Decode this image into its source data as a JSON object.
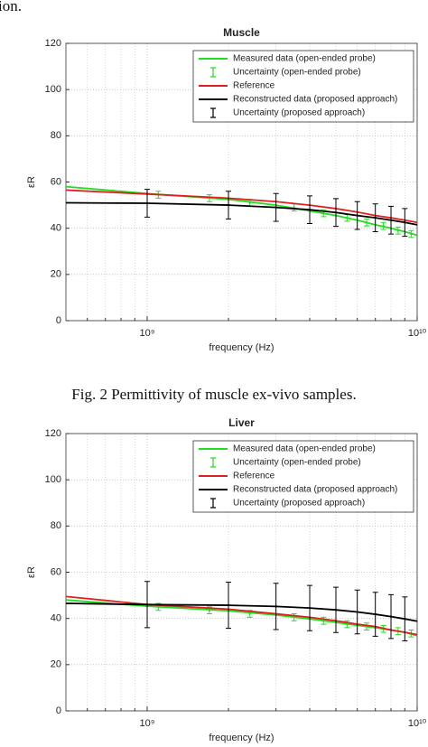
{
  "header_fragment": "ion.",
  "caption": "Fig. 2 Permittivity of muscle ex-vivo samples.",
  "chart_data": [
    {
      "type": "line",
      "title": "Muscle",
      "xlabel": "frequency (Hz)",
      "ylabel": "εR",
      "xscale": "log",
      "xlim": [
        500000000,
        10000000000
      ],
      "xticks": [
        {
          "value": 1000000000,
          "label": "10⁹"
        },
        {
          "value": 10000000000,
          "label": "10¹⁰"
        }
      ],
      "xminorticks": [
        600000000,
        700000000,
        800000000,
        900000000,
        2000000000,
        3000000000,
        4000000000,
        5000000000,
        6000000000,
        7000000000,
        8000000000,
        9000000000
      ],
      "ylim": [
        0,
        120
      ],
      "yticks": [
        0,
        20,
        40,
        60,
        80,
        100,
        120
      ],
      "grid": true,
      "legend": "northeast",
      "series": [
        {
          "name": "Measured data (open-ended probe)",
          "kind": "line",
          "color": "#22dd22",
          "x": [
            500000000,
            1000000000,
            2000000000,
            3000000000,
            4000000000,
            5000000000,
            6000000000,
            7000000000,
            8000000000,
            9000000000,
            10000000000
          ],
          "values": [
            58,
            55,
            52.5,
            50,
            47.5,
            45.5,
            43.5,
            41.5,
            40,
            38.5,
            37
          ]
        },
        {
          "name": "Uncertainty (open-ended probe)",
          "kind": "errorbar",
          "color": "#22dd22",
          "x": [
            1100000000,
            1700000000,
            2400000000,
            3500000000,
            4500000000,
            5500000000,
            6500000000,
            7500000000,
            8500000000,
            9500000000
          ],
          "values": [
            54.5,
            53,
            51,
            49,
            46.5,
            44.5,
            42.5,
            41,
            39,
            37.5
          ],
          "errors": [
            1.5,
            1.5,
            1.5,
            1.5,
            1.5,
            1.5,
            1.5,
            1.5,
            1.5,
            1.5
          ]
        },
        {
          "name": "Reference",
          "kind": "line",
          "color": "#e02020",
          "x": [
            500000000,
            1000000000,
            2000000000,
            3000000000,
            4000000000,
            5000000000,
            6000000000,
            7000000000,
            8000000000,
            9000000000,
            10000000000
          ],
          "values": [
            56.5,
            54.8,
            53,
            51.5,
            50,
            48.5,
            47,
            45.5,
            44.5,
            43.5,
            42.5
          ]
        },
        {
          "name": "Reconstructed data (proposed approach)",
          "kind": "line",
          "color": "#000000",
          "x": [
            500000000,
            1000000000,
            2000000000,
            3000000000,
            4000000000,
            5000000000,
            6000000000,
            7000000000,
            8000000000,
            9000000000,
            10000000000
          ],
          "values": [
            51,
            50.8,
            50,
            49,
            48,
            46.8,
            45.5,
            44.5,
            43.5,
            42.5,
            41.5
          ]
        },
        {
          "name": "Uncertainty (proposed approach)",
          "kind": "errorbar",
          "color": "#000000",
          "x": [
            1000000000,
            2000000000,
            3000000000,
            4000000000,
            5000000000,
            6000000000,
            7000000000,
            8000000000,
            9000000000
          ],
          "values": [
            50.8,
            50,
            49,
            48,
            46.8,
            45.5,
            44.5,
            43.5,
            42.5
          ],
          "errors": [
            6,
            6,
            6,
            6,
            6,
            6,
            6,
            6,
            6
          ]
        }
      ]
    },
    {
      "type": "line",
      "title": "Liver",
      "xlabel": "frequency (Hz)",
      "ylabel": "εR",
      "xscale": "log",
      "xlim": [
        500000000,
        10000000000
      ],
      "xticks": [
        {
          "value": 1000000000,
          "label": "10⁹"
        },
        {
          "value": 10000000000,
          "label": "10¹⁰"
        }
      ],
      "xminorticks": [
        600000000,
        700000000,
        800000000,
        900000000,
        2000000000,
        3000000000,
        4000000000,
        5000000000,
        6000000000,
        7000000000,
        8000000000,
        9000000000
      ],
      "ylim": [
        0,
        120
      ],
      "yticks": [
        0,
        20,
        40,
        60,
        80,
        100,
        120
      ],
      "grid": true,
      "legend": "northeast",
      "series": [
        {
          "name": "Measured data (open-ended probe)",
          "kind": "line",
          "color": "#22dd22",
          "x": [
            500000000,
            1000000000,
            2000000000,
            3000000000,
            4000000000,
            5000000000,
            6000000000,
            7000000000,
            8000000000,
            9000000000,
            10000000000
          ],
          "values": [
            48,
            45.3,
            43.3,
            41.5,
            39.8,
            38.3,
            37,
            36,
            35,
            34,
            32.5
          ]
        },
        {
          "name": "Uncertainty (open-ended probe)",
          "kind": "errorbar",
          "color": "#22dd22",
          "x": [
            1100000000,
            1700000000,
            2400000000,
            3500000000,
            4500000000,
            5500000000,
            6500000000,
            7500000000,
            8500000000,
            9500000000
          ],
          "values": [
            45,
            43.5,
            42,
            40.5,
            39,
            37.5,
            36.5,
            35.5,
            34.5,
            33.5
          ],
          "errors": [
            1.5,
            1.5,
            1.5,
            1.5,
            1.5,
            1.5,
            1.5,
            1.5,
            1.5,
            1.5
          ]
        },
        {
          "name": "Reference",
          "kind": "line",
          "color": "#e02020",
          "x": [
            500000000,
            1000000000,
            2000000000,
            3000000000,
            4000000000,
            5000000000,
            6000000000,
            7000000000,
            8000000000,
            9000000000,
            10000000000
          ],
          "values": [
            49.5,
            46,
            44,
            42,
            40.5,
            39,
            37.5,
            36.5,
            35,
            34,
            33
          ]
        },
        {
          "name": "Reconstructed data (proposed approach)",
          "kind": "line",
          "color": "#000000",
          "x": [
            500000000,
            1000000000,
            2000000000,
            3000000000,
            4000000000,
            5000000000,
            6000000000,
            7000000000,
            8000000000,
            9000000000,
            10000000000
          ],
          "values": [
            46.5,
            46,
            45.7,
            45.2,
            44.5,
            43.7,
            42.8,
            41.8,
            40.8,
            39.8,
            38.8
          ]
        },
        {
          "name": "Uncertainty (proposed approach)",
          "kind": "errorbar",
          "color": "#000000",
          "x": [
            1000000000,
            2000000000,
            3000000000,
            4000000000,
            5000000000,
            6000000000,
            7000000000,
            8000000000,
            9000000000
          ],
          "values": [
            46,
            45.7,
            45.2,
            44.5,
            43.7,
            42.8,
            41.8,
            40.8,
            39.8
          ],
          "errors": [
            10,
            10,
            10,
            9.8,
            9.8,
            9.5,
            9.5,
            9.5,
            9.5
          ]
        }
      ]
    }
  ]
}
